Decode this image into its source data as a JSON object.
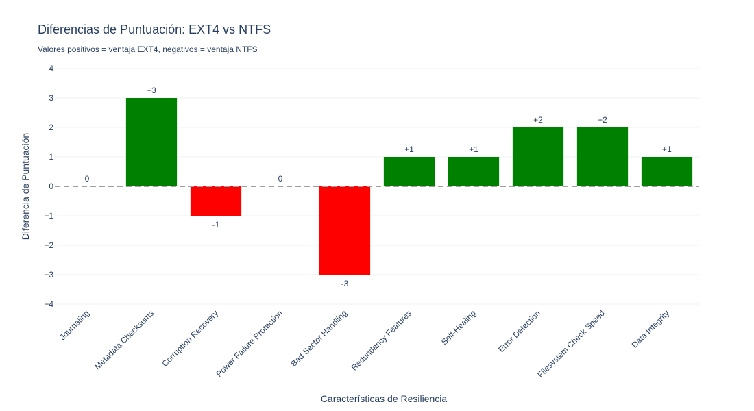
{
  "chart_data": {
    "type": "bar",
    "title": "Diferencias de Puntuación: EXT4 vs NTFS",
    "subtitle": "Valores positivos = ventaja EXT4, negativos = ventaja NTFS",
    "xlabel": "Características de Resiliencia",
    "ylabel": "Diferencia de Puntuación",
    "categories": [
      "Journaling",
      "Metadata Checksums",
      "Corruption Recovery",
      "Power Failure Protection",
      "Bad Sector Handling",
      "Redundancy Features",
      "Self-Healing",
      "Error Detection",
      "Filesystem Check Speed",
      "Data Integrity"
    ],
    "values": [
      0,
      3,
      -1,
      0,
      -3,
      1,
      1,
      2,
      2,
      1
    ],
    "data_labels": [
      "0",
      "+3",
      "-1",
      "0",
      "-3",
      "+1",
      "+1",
      "+2",
      "+2",
      "+1"
    ],
    "ylim": [
      -4,
      4
    ],
    "yticks": [
      "−4",
      "−3",
      "−2",
      "−1",
      "0",
      "1",
      "2",
      "3",
      "4"
    ],
    "grid": true,
    "zero_line": "dashed",
    "colors": {
      "positive": "#008000",
      "negative": "#ff0000",
      "zero_line": "#a0a0a0",
      "grid": "#eef0f4"
    }
  }
}
